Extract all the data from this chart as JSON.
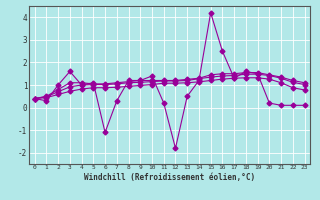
{
  "xlabel": "Windchill (Refroidissement éolien,°C)",
  "background_color": "#b2e8e8",
  "grid_color": "#ffffff",
  "line_color": "#990099",
  "x": [
    0,
    1,
    2,
    3,
    4,
    5,
    6,
    7,
    8,
    9,
    10,
    11,
    12,
    13,
    14,
    15,
    16,
    17,
    18,
    19,
    20,
    21,
    22,
    23
  ],
  "series": [
    [
      0.4,
      0.3,
      1.0,
      1.6,
      1.0,
      1.1,
      -1.1,
      0.3,
      1.2,
      1.2,
      1.4,
      0.2,
      -1.8,
      0.5,
      1.2,
      4.2,
      2.5,
      1.3,
      1.6,
      1.5,
      0.2,
      0.1,
      0.1,
      0.1
    ],
    [
      0.4,
      0.5,
      0.8,
      1.1,
      1.1,
      1.05,
      1.05,
      1.1,
      1.15,
      1.2,
      1.2,
      1.2,
      1.2,
      1.25,
      1.3,
      1.45,
      1.5,
      1.5,
      1.55,
      1.55,
      1.45,
      1.35,
      1.2,
      1.1
    ],
    [
      0.4,
      0.48,
      0.7,
      0.92,
      1.0,
      1.02,
      1.02,
      1.05,
      1.1,
      1.12,
      1.15,
      1.18,
      1.18,
      1.2,
      1.28,
      1.35,
      1.4,
      1.42,
      1.48,
      1.48,
      1.42,
      1.3,
      1.12,
      1.02
    ],
    [
      0.4,
      0.44,
      0.58,
      0.72,
      0.82,
      0.88,
      0.88,
      0.9,
      0.94,
      0.98,
      1.02,
      1.08,
      1.08,
      1.1,
      1.14,
      1.2,
      1.26,
      1.3,
      1.32,
      1.32,
      1.26,
      1.1,
      0.88,
      0.78
    ]
  ],
  "ylim": [
    -2.5,
    4.5
  ],
  "xlim": [
    -0.5,
    23.5
  ],
  "yticks": [
    -2,
    -1,
    0,
    1,
    2,
    3,
    4
  ],
  "xticks": [
    0,
    1,
    2,
    3,
    4,
    5,
    6,
    7,
    8,
    9,
    10,
    11,
    12,
    13,
    14,
    15,
    16,
    17,
    18,
    19,
    20,
    21,
    22,
    23
  ],
  "marker": "D",
  "markersize": 2.5,
  "linewidth": 0.8
}
